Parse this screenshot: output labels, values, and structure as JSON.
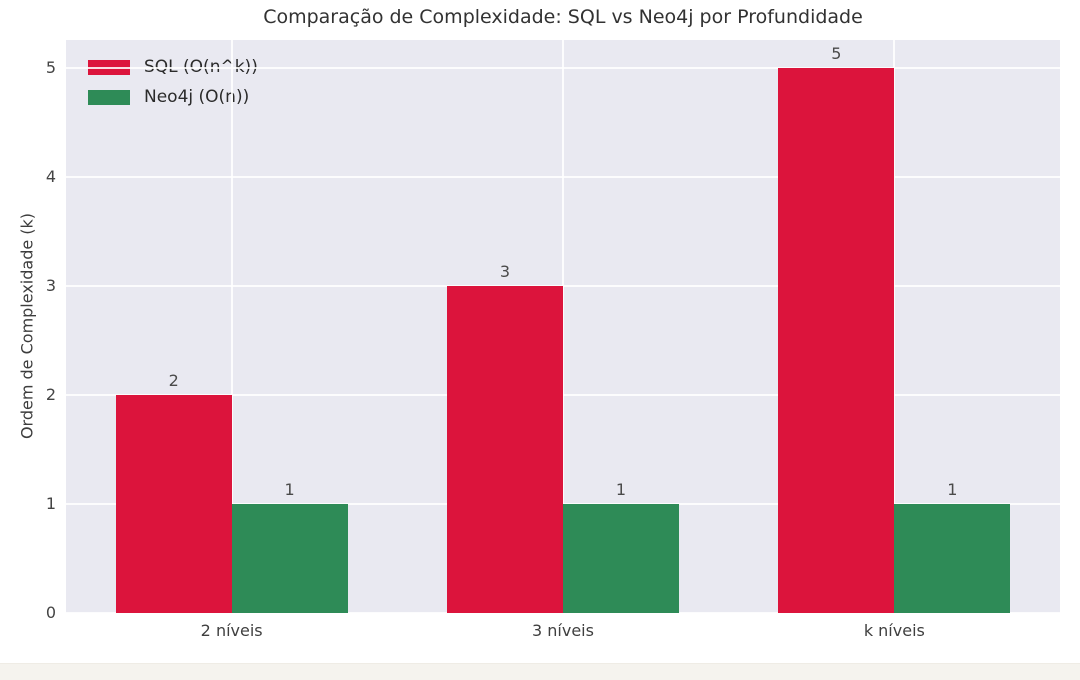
{
  "page": {
    "background_color": "#ffffff",
    "bottom_strip_color": "#f5f3ee"
  },
  "chart_data": {
    "type": "bar",
    "title": "Comparação de Complexidade: SQL vs Neo4j por Profundidade",
    "xlabel": "",
    "ylabel": "Ordem de Complexidade (k)",
    "categories": [
      "2 níveis",
      "3 níveis",
      "k níveis"
    ],
    "series": [
      {
        "name": "SQL (O(n^k))",
        "color": "#DC143C",
        "values": [
          2,
          3,
          5
        ]
      },
      {
        "name": "Neo4j (O(n))",
        "color": "#2E8B57",
        "values": [
          1,
          1,
          1
        ]
      }
    ],
    "bar_value_labels": [
      [
        "2",
        "3",
        "5"
      ],
      [
        "1",
        "1",
        "1"
      ]
    ],
    "yticks": [
      "0",
      "1",
      "2",
      "3",
      "4",
      "5"
    ],
    "ylim": [
      0,
      5.26
    ],
    "grid": true,
    "grid_color": "#ffffff",
    "plot_background": "#E9E9F1",
    "legend_position": "upper-left"
  }
}
